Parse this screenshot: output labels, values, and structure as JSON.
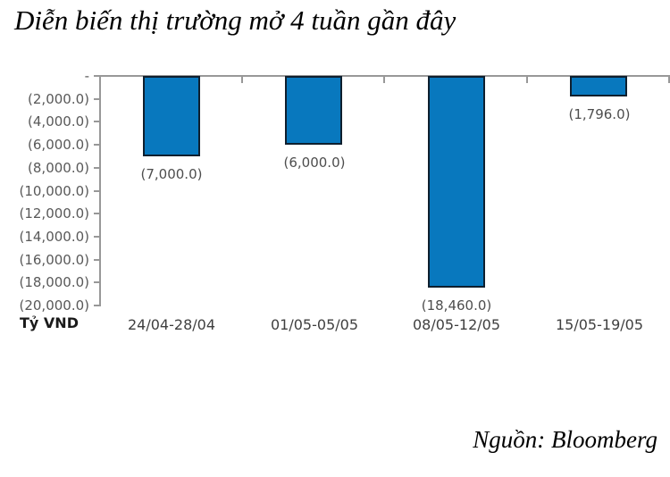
{
  "page": {
    "title": "Diễn biến thị trường mở 4 tuần gần đây",
    "source": "Nguồn: Bloomberg"
  },
  "chart_data": {
    "type": "bar",
    "title": "Diễn biến thị trường mở 4 tuần gần đây",
    "categories": [
      "24/04-28/04",
      "01/05-05/05",
      "08/05-12/05",
      "15/05-19/05"
    ],
    "values": [
      -7000.0,
      -6000.0,
      -18460.0,
      -1796.0
    ],
    "data_labels": [
      "(7,000.0)",
      "(6,000.0)",
      "(18,460.0)",
      "(1,796.0)"
    ],
    "unit_label": "Tỷ VND",
    "source": "Nguồn: Bloomberg",
    "ylim": [
      -20000,
      0
    ],
    "ytick_step": 2000,
    "ytick_labels": [
      "-",
      "(2,000.0)",
      "(4,000.0)",
      "(6,000.0)",
      "(8,000.0)",
      "(10,000.0)",
      "(12,000.0)",
      "(14,000.0)",
      "(16,000.0)",
      "(18,000.0)",
      "(20,000.0)"
    ],
    "grid": false,
    "legend": "none",
    "bar_color": "#0878be",
    "bar_border_color": "#0e1f2e",
    "axis_color": "#989898",
    "ytick_label_color": "#595959",
    "data_label_color": "#4d4d4d",
    "category_label_color": "#3f3f3f"
  }
}
